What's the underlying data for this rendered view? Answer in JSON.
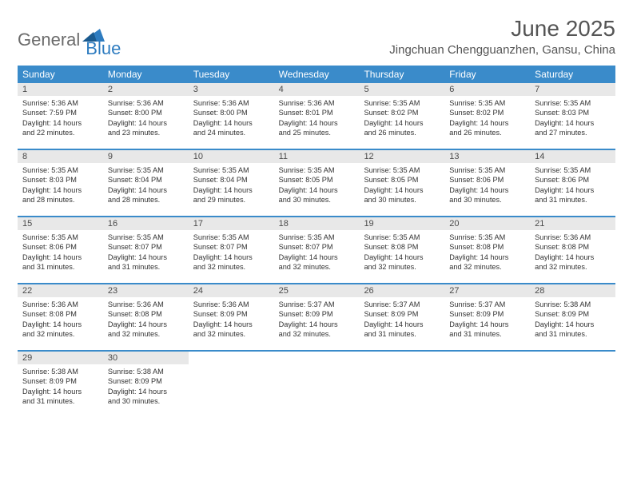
{
  "logo": {
    "general": "General",
    "blue": "Blue"
  },
  "title": "June 2025",
  "subtitle": "Jingchuan Chengguanzhen, Gansu, China",
  "colors": {
    "header_bg": "#3a8bca",
    "header_text": "#ffffff",
    "daynum_bg": "#e8e8e8",
    "border": "#3a8bca",
    "logo_gray": "#6b6b6b",
    "logo_blue": "#2e7cc0"
  },
  "weekdays": [
    "Sunday",
    "Monday",
    "Tuesday",
    "Wednesday",
    "Thursday",
    "Friday",
    "Saturday"
  ],
  "weeks": [
    [
      {
        "num": "1",
        "sunrise": "Sunrise: 5:36 AM",
        "sunset": "Sunset: 7:59 PM",
        "daylight1": "Daylight: 14 hours",
        "daylight2": "and 22 minutes."
      },
      {
        "num": "2",
        "sunrise": "Sunrise: 5:36 AM",
        "sunset": "Sunset: 8:00 PM",
        "daylight1": "Daylight: 14 hours",
        "daylight2": "and 23 minutes."
      },
      {
        "num": "3",
        "sunrise": "Sunrise: 5:36 AM",
        "sunset": "Sunset: 8:00 PM",
        "daylight1": "Daylight: 14 hours",
        "daylight2": "and 24 minutes."
      },
      {
        "num": "4",
        "sunrise": "Sunrise: 5:36 AM",
        "sunset": "Sunset: 8:01 PM",
        "daylight1": "Daylight: 14 hours",
        "daylight2": "and 25 minutes."
      },
      {
        "num": "5",
        "sunrise": "Sunrise: 5:35 AM",
        "sunset": "Sunset: 8:02 PM",
        "daylight1": "Daylight: 14 hours",
        "daylight2": "and 26 minutes."
      },
      {
        "num": "6",
        "sunrise": "Sunrise: 5:35 AM",
        "sunset": "Sunset: 8:02 PM",
        "daylight1": "Daylight: 14 hours",
        "daylight2": "and 26 minutes."
      },
      {
        "num": "7",
        "sunrise": "Sunrise: 5:35 AM",
        "sunset": "Sunset: 8:03 PM",
        "daylight1": "Daylight: 14 hours",
        "daylight2": "and 27 minutes."
      }
    ],
    [
      {
        "num": "8",
        "sunrise": "Sunrise: 5:35 AM",
        "sunset": "Sunset: 8:03 PM",
        "daylight1": "Daylight: 14 hours",
        "daylight2": "and 28 minutes."
      },
      {
        "num": "9",
        "sunrise": "Sunrise: 5:35 AM",
        "sunset": "Sunset: 8:04 PM",
        "daylight1": "Daylight: 14 hours",
        "daylight2": "and 28 minutes."
      },
      {
        "num": "10",
        "sunrise": "Sunrise: 5:35 AM",
        "sunset": "Sunset: 8:04 PM",
        "daylight1": "Daylight: 14 hours",
        "daylight2": "and 29 minutes."
      },
      {
        "num": "11",
        "sunrise": "Sunrise: 5:35 AM",
        "sunset": "Sunset: 8:05 PM",
        "daylight1": "Daylight: 14 hours",
        "daylight2": "and 30 minutes."
      },
      {
        "num": "12",
        "sunrise": "Sunrise: 5:35 AM",
        "sunset": "Sunset: 8:05 PM",
        "daylight1": "Daylight: 14 hours",
        "daylight2": "and 30 minutes."
      },
      {
        "num": "13",
        "sunrise": "Sunrise: 5:35 AM",
        "sunset": "Sunset: 8:06 PM",
        "daylight1": "Daylight: 14 hours",
        "daylight2": "and 30 minutes."
      },
      {
        "num": "14",
        "sunrise": "Sunrise: 5:35 AM",
        "sunset": "Sunset: 8:06 PM",
        "daylight1": "Daylight: 14 hours",
        "daylight2": "and 31 minutes."
      }
    ],
    [
      {
        "num": "15",
        "sunrise": "Sunrise: 5:35 AM",
        "sunset": "Sunset: 8:06 PM",
        "daylight1": "Daylight: 14 hours",
        "daylight2": "and 31 minutes."
      },
      {
        "num": "16",
        "sunrise": "Sunrise: 5:35 AM",
        "sunset": "Sunset: 8:07 PM",
        "daylight1": "Daylight: 14 hours",
        "daylight2": "and 31 minutes."
      },
      {
        "num": "17",
        "sunrise": "Sunrise: 5:35 AM",
        "sunset": "Sunset: 8:07 PM",
        "daylight1": "Daylight: 14 hours",
        "daylight2": "and 32 minutes."
      },
      {
        "num": "18",
        "sunrise": "Sunrise: 5:35 AM",
        "sunset": "Sunset: 8:07 PM",
        "daylight1": "Daylight: 14 hours",
        "daylight2": "and 32 minutes."
      },
      {
        "num": "19",
        "sunrise": "Sunrise: 5:35 AM",
        "sunset": "Sunset: 8:08 PM",
        "daylight1": "Daylight: 14 hours",
        "daylight2": "and 32 minutes."
      },
      {
        "num": "20",
        "sunrise": "Sunrise: 5:35 AM",
        "sunset": "Sunset: 8:08 PM",
        "daylight1": "Daylight: 14 hours",
        "daylight2": "and 32 minutes."
      },
      {
        "num": "21",
        "sunrise": "Sunrise: 5:36 AM",
        "sunset": "Sunset: 8:08 PM",
        "daylight1": "Daylight: 14 hours",
        "daylight2": "and 32 minutes."
      }
    ],
    [
      {
        "num": "22",
        "sunrise": "Sunrise: 5:36 AM",
        "sunset": "Sunset: 8:08 PM",
        "daylight1": "Daylight: 14 hours",
        "daylight2": "and 32 minutes."
      },
      {
        "num": "23",
        "sunrise": "Sunrise: 5:36 AM",
        "sunset": "Sunset: 8:08 PM",
        "daylight1": "Daylight: 14 hours",
        "daylight2": "and 32 minutes."
      },
      {
        "num": "24",
        "sunrise": "Sunrise: 5:36 AM",
        "sunset": "Sunset: 8:09 PM",
        "daylight1": "Daylight: 14 hours",
        "daylight2": "and 32 minutes."
      },
      {
        "num": "25",
        "sunrise": "Sunrise: 5:37 AM",
        "sunset": "Sunset: 8:09 PM",
        "daylight1": "Daylight: 14 hours",
        "daylight2": "and 32 minutes."
      },
      {
        "num": "26",
        "sunrise": "Sunrise: 5:37 AM",
        "sunset": "Sunset: 8:09 PM",
        "daylight1": "Daylight: 14 hours",
        "daylight2": "and 31 minutes."
      },
      {
        "num": "27",
        "sunrise": "Sunrise: 5:37 AM",
        "sunset": "Sunset: 8:09 PM",
        "daylight1": "Daylight: 14 hours",
        "daylight2": "and 31 minutes."
      },
      {
        "num": "28",
        "sunrise": "Sunrise: 5:38 AM",
        "sunset": "Sunset: 8:09 PM",
        "daylight1": "Daylight: 14 hours",
        "daylight2": "and 31 minutes."
      }
    ],
    [
      {
        "num": "29",
        "sunrise": "Sunrise: 5:38 AM",
        "sunset": "Sunset: 8:09 PM",
        "daylight1": "Daylight: 14 hours",
        "daylight2": "and 31 minutes."
      },
      {
        "num": "30",
        "sunrise": "Sunrise: 5:38 AM",
        "sunset": "Sunset: 8:09 PM",
        "daylight1": "Daylight: 14 hours",
        "daylight2": "and 30 minutes."
      },
      null,
      null,
      null,
      null,
      null
    ]
  ]
}
